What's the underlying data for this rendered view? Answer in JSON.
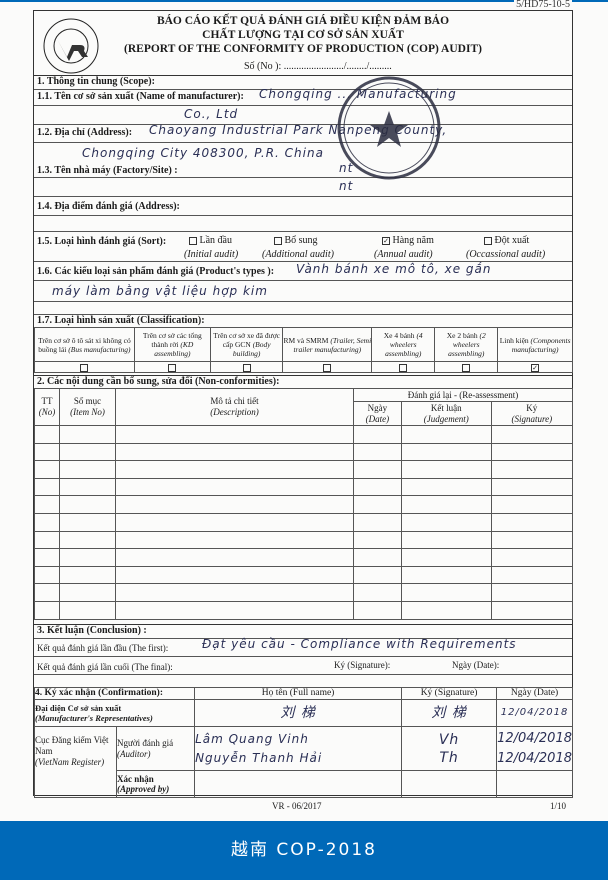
{
  "form_code": "5/HD75-10-5",
  "header": {
    "line1": "BÁO CÁO KẾT QUẢ ĐÁNH GIÁ ĐIỀU KIỆN ĐẢM BẢO",
    "line2": "CHẤT LƯỢNG TẠI CƠ SỞ SẢN XUẤT",
    "line3": "(REPORT OF THE CONFORMITY OF PRODUCTION (COP) AUDIT)",
    "no_label": "Số (No ): ......................../......../.........",
    "logo_text_top": "ĐĂNG KIỂM VIỆT NAM",
    "logo_text_bottom": "VIETNAM REGISTER",
    "logo_mark": "VR"
  },
  "scope": {
    "heading": "1.  Thông tin chung (Scope):",
    "manufacturer_label": "1.1. Tên cơ sở sản xuất (Name of manufacturer):",
    "manufacturer_value": "Chongqing ... Manufacturing",
    "manufacturer_value2": "Co., Ltd",
    "address_label": "1.2. Địa chỉ (Address):",
    "address_value": "Chaoyang Industrial Park Nanpeng County,",
    "address_value2": "Chongqing City 408300, P.R. China",
    "factory_label": "1.3. Tên nhà máy (Factory/Site) :",
    "factory_value": "nt",
    "site_value": "nt",
    "audit_address_label": "1.4. Địa điểm đánh giá (Address):",
    "sort_label": "1.5. Loại hình đánh giá (Sort):",
    "sorts": [
      {
        "label": "Lần đầu",
        "en": "(Initial audit)",
        "checked": false
      },
      {
        "label": "Bổ sung",
        "en": "(Additional audit)",
        "checked": false
      },
      {
        "label": "Hàng năm",
        "en": "(Annual audit)",
        "checked": true
      },
      {
        "label": "Đột xuất",
        "en": "(Occassional audit)",
        "checked": false
      }
    ],
    "types_label": "1.6. Các kiểu loại sản phẩm đánh giá (Product's types ):",
    "types_value": "Vành bánh xe mô tô, xe gắn",
    "types_value2": "máy làm bằng vật liệu hợp kim",
    "classification_label": "1.7. Loại hình sản xuất (Classification):",
    "classification": [
      {
        "label": "Trên cơ sở ô tô sát xi không có buồng lái",
        "en": "(Bus manufacturing)",
        "checked": false
      },
      {
        "label": "Trên cơ sở các tổng thành rời",
        "en": "(KD assembling)",
        "checked": false
      },
      {
        "label": "Trên cơ sở xe đã được cấp GCN",
        "en": "(Body building)",
        "checked": false
      },
      {
        "label": "RM và SMRM",
        "en": "(Trailer, Semi trailer manufacturing)",
        "checked": false
      },
      {
        "label": "Xe 4 bánh",
        "en": "(4 wheelers assembling)",
        "checked": false
      },
      {
        "label": "Xe 2 bánh",
        "en": "(2 wheelers assembling)",
        "checked": false
      },
      {
        "label": "Linh kiện",
        "en": "(Components manufacturing)",
        "checked": true
      }
    ]
  },
  "nonconf": {
    "heading": "2. Các nội dung cần bổ sung, sửa đổi (Non-conformities):",
    "reassess": "Đánh giá lại - (Re-assessment)",
    "cols": [
      {
        "vi": "TT",
        "en": "(No)"
      },
      {
        "vi": "Số mục",
        "en": "(Item No)"
      },
      {
        "vi": "Mô tả chi tiết",
        "en": "(Description)"
      },
      {
        "vi": "Ngày",
        "en": "(Date)"
      },
      {
        "vi": "Kết luận",
        "en": "(Judgement)"
      },
      {
        "vi": "Ký",
        "en": "(Signature)"
      }
    ]
  },
  "conclusion": {
    "heading": "3. Kết luận (Conclusion) :",
    "first_label": "Kết quả đánh giá lần đầu (The first):",
    "first_value": "Đạt yêu cầu - Compliance with Requirements",
    "final_label": "Kết quả đánh giá lần cuối (The final):",
    "sig_label": "Ký (Signature):",
    "date_label": "Ngày (Date):"
  },
  "confirmation": {
    "heading": "4. Ký xác nhận (Confirmation):",
    "col_name": "Họ tên (Full name)",
    "col_sig": "Ký (Signature)",
    "col_date": "Ngày (Date)",
    "rep_label": "Đại diện Cơ sở sản xuất",
    "rep_label_en": "(Manufacturer's Representatives)",
    "rep_name": "刘 梯",
    "rep_sig": "刘 梯",
    "rep_date": "12/04/2018",
    "vr_label": "Cục Đăng kiểm Việt Nam",
    "vr_label_en": "(VietNam Register)",
    "auditor_label": "Người đánh giá",
    "auditor_label_en": "(Auditor)",
    "auditors": [
      {
        "name": "Lâm Quang Vinh",
        "sig": "Vh",
        "date": "12/04/2018"
      },
      {
        "name": "Nguyễn Thanh Hải",
        "sig": "Th",
        "date": "12/04/2018"
      }
    ],
    "approved_label": "Xác nhận",
    "approved_label_en": "(Approved by)"
  },
  "footer": {
    "version": "VR - 06/2017",
    "page": "1/10"
  },
  "stamp_text": "重庆...有限公司",
  "banner": "越南 COP-2018",
  "colors": {
    "banner": "#0069b8",
    "ink": "#2a2f55"
  }
}
